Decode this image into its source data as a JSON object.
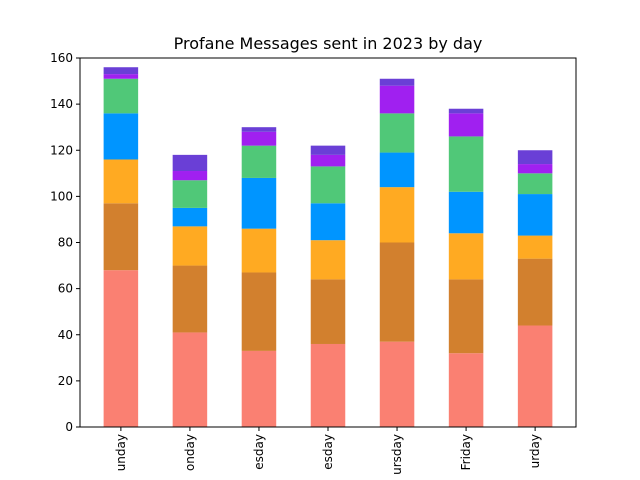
{
  "chart_data": {
    "type": "bar",
    "stacked": true,
    "title": "Profane Messages sent in 2023 by day",
    "xlabel": "",
    "ylabel": "",
    "categories": [
      "Sunday",
      "Monday",
      "Tuesday",
      "Wednesday",
      "Thursday",
      "Friday",
      "Saturday"
    ],
    "category_labels_visible": [
      "unday",
      "onday",
      "esday",
      "esday",
      "ursday",
      "Friday",
      "urday"
    ],
    "ylim": [
      0,
      160
    ],
    "yticks": [
      0,
      20,
      40,
      60,
      80,
      100,
      120,
      140,
      160
    ],
    "grid": false,
    "legend": "none",
    "series": [
      {
        "color": "#FA8072",
        "values": [
          68,
          41,
          33,
          36,
          37,
          32,
          44
        ]
      },
      {
        "color": "#D2802E",
        "values": [
          29,
          29,
          34,
          28,
          43,
          32,
          29
        ]
      },
      {
        "color": "#FFAA22",
        "values": [
          19,
          17,
          19,
          17,
          24,
          20,
          10
        ]
      },
      {
        "color": "#0095FF",
        "values": [
          20,
          8,
          22,
          16,
          15,
          18,
          18
        ]
      },
      {
        "color": "#50C878",
        "values": [
          15,
          12,
          14,
          16,
          17,
          24,
          9
        ]
      },
      {
        "color": "#A020F0",
        "values": [
          2,
          4,
          6,
          5,
          12,
          10,
          4
        ]
      },
      {
        "color": "#6A3FD6",
        "values": [
          3,
          7,
          2,
          4,
          3,
          2,
          6
        ]
      }
    ]
  }
}
